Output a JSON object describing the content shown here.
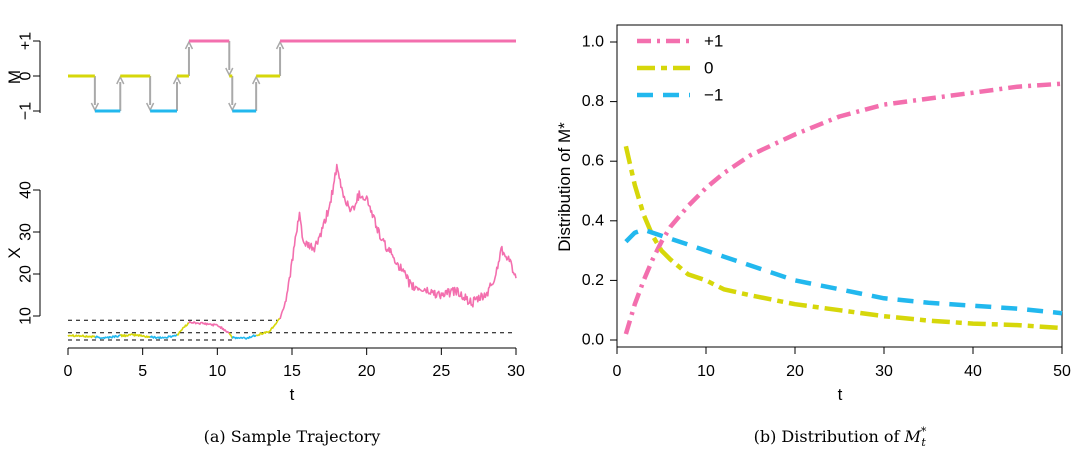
{
  "colors": {
    "plus1": "#f36fae",
    "zero": "#d6d70a",
    "minus1": "#22b8ee",
    "arrow": "#a9a9a9"
  },
  "chart_data": [
    {
      "id": "M-panel",
      "type": "line",
      "xlim": [
        0,
        30
      ],
      "ylabel": "M",
      "y_ticks": [
        -1,
        0,
        1
      ],
      "y_tick_labels": [
        "−1",
        "0",
        "+1"
      ],
      "regime_segments": [
        {
          "x0": 0,
          "x1": 1.8,
          "m": 0
        },
        {
          "x0": 1.8,
          "x1": 3.5,
          "m": -1
        },
        {
          "x0": 3.5,
          "x1": 5.5,
          "m": 0
        },
        {
          "x0": 5.5,
          "x1": 7.3,
          "m": -1
        },
        {
          "x0": 7.3,
          "x1": 8.1,
          "m": 0
        },
        {
          "x0": 8.1,
          "x1": 10.8,
          "m": 1
        },
        {
          "x0": 10.8,
          "x1": 11.0,
          "m": 0
        },
        {
          "x0": 11.0,
          "x1": 12.6,
          "m": -1
        },
        {
          "x0": 12.6,
          "x1": 14.2,
          "m": 0
        },
        {
          "x0": 14.2,
          "x1": 30,
          "m": 1
        }
      ]
    },
    {
      "id": "X-panel",
      "type": "line",
      "xlim": [
        0,
        30
      ],
      "ylim": [
        3,
        44
      ],
      "xlabel": "t",
      "ylabel": "X",
      "x_ticks": [
        0,
        5,
        10,
        15,
        20,
        25,
        30
      ],
      "y_ticks": [
        10,
        20,
        30,
        40
      ],
      "threshold_lines": [
        {
          "y": 9,
          "x0": 0,
          "x1": 14
        },
        {
          "y": 6,
          "x0": 0,
          "x1": 30
        },
        {
          "y": 4.3,
          "x0": 0,
          "x1": 11
        }
      ],
      "path_keypoints": [
        [
          0,
          5.5
        ],
        [
          1,
          5.2
        ],
        [
          1.8,
          5.0
        ],
        [
          2.5,
          4.8
        ],
        [
          3.5,
          5.3
        ],
        [
          4.5,
          5.5
        ],
        [
          5.5,
          5.0
        ],
        [
          6.5,
          4.8
        ],
        [
          7.3,
          5.5
        ],
        [
          8.1,
          8.5
        ],
        [
          9,
          8.2
        ],
        [
          10,
          7.8
        ],
        [
          10.8,
          6.0
        ],
        [
          11.0,
          4.8
        ],
        [
          12,
          4.7
        ],
        [
          12.6,
          5.5
        ],
        [
          13.5,
          6.3
        ],
        [
          14.2,
          9.5
        ],
        [
          14.6,
          14
        ],
        [
          15,
          23
        ],
        [
          15.5,
          34
        ],
        [
          15.8,
          27
        ],
        [
          16.5,
          26
        ],
        [
          17,
          30
        ],
        [
          17.5,
          36
        ],
        [
          18,
          45
        ],
        [
          18.5,
          38
        ],
        [
          19,
          35
        ],
        [
          19.5,
          39
        ],
        [
          20,
          38
        ],
        [
          21,
          28
        ],
        [
          22,
          23
        ],
        [
          23,
          17
        ],
        [
          24,
          16
        ],
        [
          25,
          15
        ],
        [
          26,
          16
        ],
        [
          27,
          13
        ],
        [
          28,
          15
        ],
        [
          28.6,
          19
        ],
        [
          29,
          26
        ],
        [
          29.5,
          24
        ],
        [
          30,
          19
        ]
      ]
    },
    {
      "id": "distribution",
      "type": "line",
      "xlim": [
        0,
        50
      ],
      "ylim": [
        0,
        1.0
      ],
      "xlabel": "t",
      "ylabel": "Distribution of M*",
      "x_ticks": [
        0,
        10,
        20,
        30,
        40,
        50
      ],
      "y_ticks": [
        0.0,
        0.2,
        0.4,
        0.6,
        0.8,
        1.0
      ],
      "y_tick_labels": [
        "0.0",
        "0.2",
        "0.4",
        "0.6",
        "0.8",
        "1.0"
      ],
      "legend_position": "top-left",
      "series": [
        {
          "name": "+1",
          "color_key": "plus1",
          "x": [
            1,
            2,
            3,
            4,
            5,
            6,
            8,
            10,
            12,
            15,
            20,
            25,
            30,
            35,
            40,
            45,
            50
          ],
          "y": [
            0.02,
            0.12,
            0.2,
            0.27,
            0.33,
            0.38,
            0.45,
            0.51,
            0.56,
            0.62,
            0.69,
            0.75,
            0.79,
            0.81,
            0.83,
            0.85,
            0.86
          ]
        },
        {
          "name": "0",
          "color_key": "zero",
          "x": [
            1,
            2,
            3,
            4,
            5,
            6,
            8,
            10,
            12,
            15,
            20,
            25,
            30,
            35,
            40,
            45,
            50
          ],
          "y": [
            0.65,
            0.52,
            0.42,
            0.35,
            0.3,
            0.27,
            0.22,
            0.2,
            0.17,
            0.15,
            0.12,
            0.1,
            0.08,
            0.065,
            0.055,
            0.05,
            0.04
          ]
        },
        {
          "name": "−1",
          "color_key": "minus1",
          "x": [
            1,
            2,
            3,
            4,
            5,
            6,
            8,
            10,
            12,
            15,
            20,
            25,
            30,
            35,
            40,
            45,
            50
          ],
          "y": [
            0.33,
            0.36,
            0.37,
            0.36,
            0.35,
            0.34,
            0.32,
            0.3,
            0.28,
            0.25,
            0.2,
            0.17,
            0.14,
            0.125,
            0.115,
            0.105,
            0.09
          ]
        }
      ]
    }
  ],
  "captions": {
    "a": "(a) Sample Trajectory",
    "b_prefix": "(b) Distribution of ",
    "b_var": "M",
    "b_sup": "*",
    "b_sub": "t"
  }
}
